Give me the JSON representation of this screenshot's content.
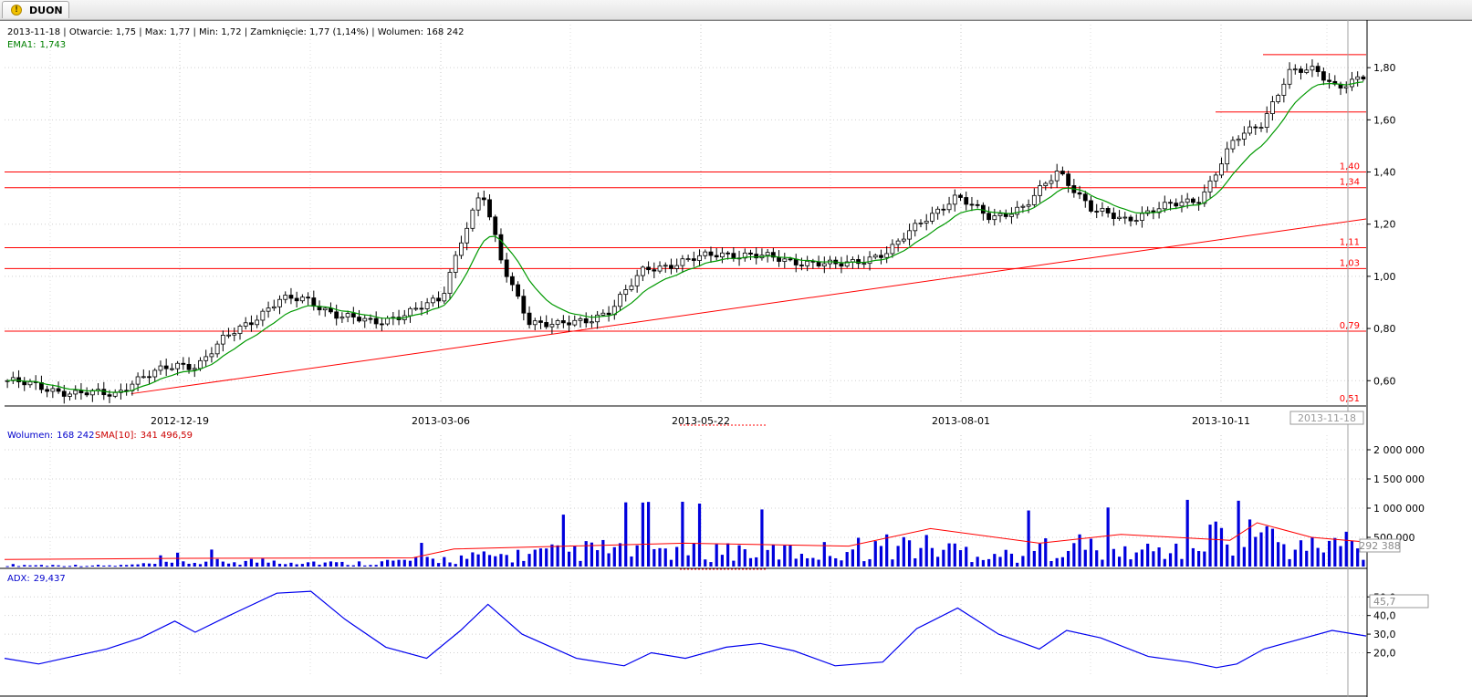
{
  "tab": {
    "label": "DUON",
    "icon": "warning-icon"
  },
  "header": {
    "ohlc": "2013-11-18 | Otwarcie: 1,75 | Max: 1,77 | Min: 1,72 | Zamknięcie: 1,77 (1,14%)  | Wolumen: 168 242",
    "ema_label": "EMA1:",
    "ema_value": "1,743"
  },
  "volume_panel": {
    "label": "Wolumen:",
    "value": "168 242",
    "sma_label": "SMA[10]:",
    "sma_value": "341 496,59",
    "current_box": "292 388",
    "ticks": [
      "2 000 000",
      "1 500 000",
      "1 000 000",
      "500 000"
    ]
  },
  "adx_panel": {
    "label": "ADX:",
    "value": "29,437",
    "current_box": "45,7",
    "ticks": [
      "50,0",
      "40,0",
      "30,0",
      "20,0"
    ]
  },
  "chart_data": {
    "type": "candlestick",
    "price_axis": {
      "ticks": [
        "1,80",
        "1,60",
        "1,40",
        "1,20",
        "1,00",
        "0,80",
        "0,60"
      ],
      "range": [
        0.51,
        1.93
      ]
    },
    "date_axis": {
      "labels": [
        "2012-12-19",
        "2013-03-06",
        "2013-05-22",
        "2013-08-01",
        "2013-10-11"
      ],
      "cursor_label": "2013-11-18"
    },
    "horizontal_levels": [
      {
        "label": "1,40",
        "value": 1.4
      },
      {
        "label": "1,34",
        "value": 1.34
      },
      {
        "label": "1,11",
        "value": 1.11
      },
      {
        "label": "1,03",
        "value": 1.03
      },
      {
        "label": "0,79",
        "value": 0.79
      },
      {
        "label": "0,51",
        "value": 0.51
      }
    ],
    "short_levels": [
      1.85,
      1.63
    ],
    "trendline": {
      "from": {
        "x": 0.093,
        "y": 0.55
      },
      "to": {
        "x": 1.0,
        "y": 1.22
      }
    },
    "price_path": [
      [
        0.0,
        0.6
      ],
      [
        0.03,
        0.57
      ],
      [
        0.05,
        0.55
      ],
      [
        0.08,
        0.55
      ],
      [
        0.093,
        0.6
      ],
      [
        0.125,
        0.66
      ],
      [
        0.14,
        0.66
      ],
      [
        0.16,
        0.76
      ],
      [
        0.18,
        0.83
      ],
      [
        0.2,
        0.91
      ],
      [
        0.22,
        0.91
      ],
      [
        0.245,
        0.85
      ],
      [
        0.27,
        0.82
      ],
      [
        0.3,
        0.87
      ],
      [
        0.32,
        0.91
      ],
      [
        0.335,
        1.15
      ],
      [
        0.35,
        1.33
      ],
      [
        0.365,
        1.04
      ],
      [
        0.385,
        0.83
      ],
      [
        0.405,
        0.81
      ],
      [
        0.425,
        0.83
      ],
      [
        0.445,
        0.87
      ],
      [
        0.47,
        1.03
      ],
      [
        0.495,
        1.05
      ],
      [
        0.525,
        1.09
      ],
      [
        0.565,
        1.07
      ],
      [
        0.61,
        1.04
      ],
      [
        0.65,
        1.09
      ],
      [
        0.675,
        1.22
      ],
      [
        0.7,
        1.3
      ],
      [
        0.725,
        1.23
      ],
      [
        0.75,
        1.26
      ],
      [
        0.775,
        1.41
      ],
      [
        0.8,
        1.25
      ],
      [
        0.825,
        1.22
      ],
      [
        0.85,
        1.26
      ],
      [
        0.88,
        1.3
      ],
      [
        0.905,
        1.52
      ],
      [
        0.925,
        1.59
      ],
      [
        0.945,
        1.78
      ],
      [
        0.965,
        1.79
      ],
      [
        0.98,
        1.73
      ],
      [
        1.0,
        1.76
      ]
    ],
    "volume_peaks": [
      [
        0.0,
        0.08
      ],
      [
        0.08,
        0.05
      ],
      [
        0.13,
        0.2
      ],
      [
        0.2,
        0.3
      ],
      [
        0.25,
        0.15
      ],
      [
        0.33,
        0.4
      ],
      [
        0.37,
        0.55
      ],
      [
        0.45,
        0.9
      ],
      [
        0.52,
        0.85
      ],
      [
        0.59,
        0.7
      ],
      [
        0.66,
        1.1
      ],
      [
        0.7,
        0.85
      ],
      [
        0.74,
        0.55
      ],
      [
        0.78,
        1.2
      ],
      [
        0.82,
        0.7
      ],
      [
        0.87,
        0.9
      ],
      [
        0.91,
        2.2
      ],
      [
        0.95,
        0.85
      ],
      [
        0.99,
        1.3
      ],
      [
        1.0,
        0.4
      ]
    ],
    "volume_sma_path": [
      [
        0.0,
        0.12
      ],
      [
        0.13,
        0.14
      ],
      [
        0.3,
        0.15
      ],
      [
        0.33,
        0.3
      ],
      [
        0.5,
        0.4
      ],
      [
        0.62,
        0.35
      ],
      [
        0.68,
        0.65
      ],
      [
        0.76,
        0.4
      ],
      [
        0.82,
        0.55
      ],
      [
        0.9,
        0.45
      ],
      [
        0.92,
        0.75
      ],
      [
        0.96,
        0.5
      ],
      [
        1.0,
        0.42
      ]
    ],
    "adx_path": [
      [
        0.0,
        17
      ],
      [
        0.025,
        14
      ],
      [
        0.05,
        18
      ],
      [
        0.075,
        22
      ],
      [
        0.1,
        28
      ],
      [
        0.125,
        37
      ],
      [
        0.14,
        31
      ],
      [
        0.165,
        40
      ],
      [
        0.2,
        52
      ],
      [
        0.225,
        53
      ],
      [
        0.25,
        38
      ],
      [
        0.28,
        23
      ],
      [
        0.31,
        17
      ],
      [
        0.335,
        32
      ],
      [
        0.355,
        46
      ],
      [
        0.38,
        30
      ],
      [
        0.42,
        17
      ],
      [
        0.455,
        13
      ],
      [
        0.475,
        20
      ],
      [
        0.5,
        17
      ],
      [
        0.53,
        23
      ],
      [
        0.555,
        25
      ],
      [
        0.58,
        21
      ],
      [
        0.61,
        13
      ],
      [
        0.645,
        15
      ],
      [
        0.67,
        33
      ],
      [
        0.7,
        44
      ],
      [
        0.73,
        30
      ],
      [
        0.76,
        22
      ],
      [
        0.78,
        32
      ],
      [
        0.805,
        28
      ],
      [
        0.84,
        18
      ],
      [
        0.87,
        15
      ],
      [
        0.89,
        12
      ],
      [
        0.905,
        14
      ],
      [
        0.925,
        22
      ],
      [
        0.955,
        28
      ],
      [
        0.975,
        32
      ],
      [
        1.0,
        29
      ]
    ]
  }
}
